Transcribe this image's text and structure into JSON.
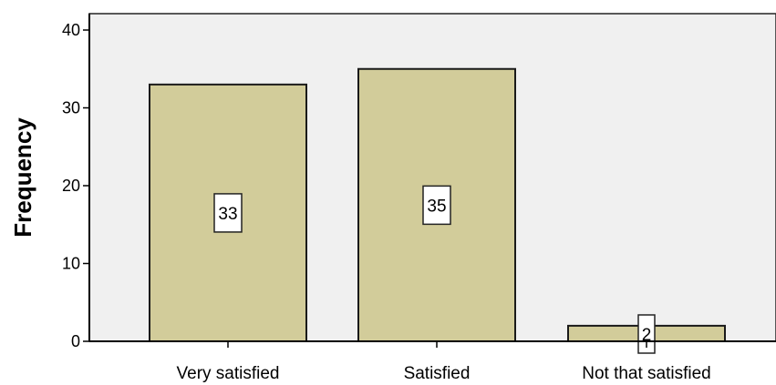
{
  "chart_data": {
    "type": "bar",
    "categories": [
      "Very satisfied",
      "Satisfied",
      "Not that satisfied"
    ],
    "values": [
      33,
      35,
      2
    ],
    "data_labels": [
      "33",
      "35",
      "2"
    ],
    "title": "",
    "xlabel": "",
    "ylabel": "Frequency",
    "ylim": [
      0,
      40
    ],
    "yticks": [
      "0",
      "10",
      "20",
      "30",
      "40"
    ],
    "grid": false,
    "colors": {
      "bar_fill": "#d2cc9a",
      "bar_stroke": "#1a1a1a",
      "plot_background": "#f0f0f0",
      "axis": "#000000"
    }
  }
}
